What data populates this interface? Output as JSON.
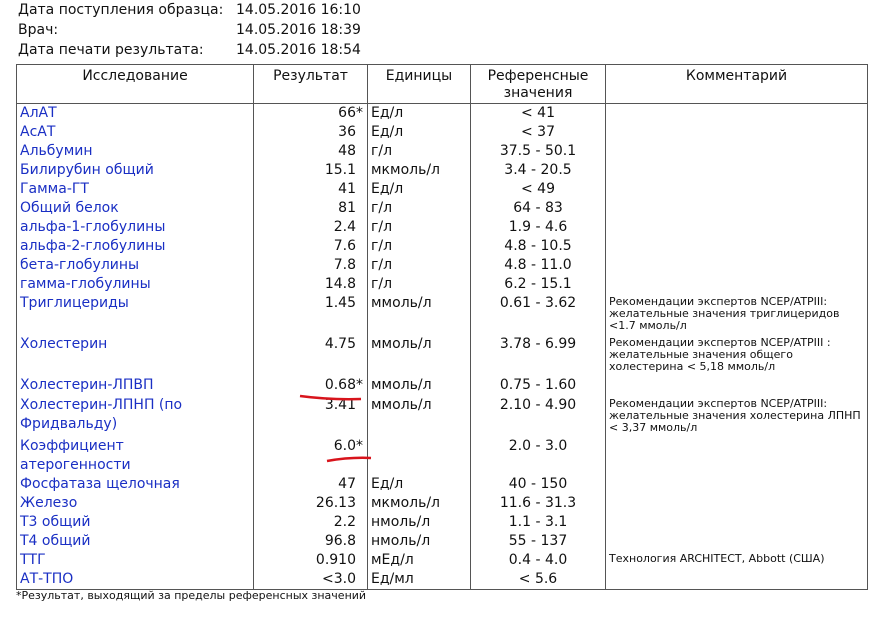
{
  "header": {
    "fields": [
      {
        "label": "Дата поступления образца:",
        "value": "14.05.2016 16:10"
      },
      {
        "label": "Врач:",
        "value": "14.05.2016 18:39"
      },
      {
        "label": "Дата печати результата:",
        "value": "14.05.2016 18:54"
      }
    ]
  },
  "table": {
    "columns": [
      "Исследование",
      "Результат",
      "Единицы",
      "Референсные значения",
      "Комментарий"
    ],
    "rows": [
      {
        "name": "АлАТ",
        "result": "66",
        "flag": "*",
        "units": "Ед/л",
        "reference": "< 41"
      },
      {
        "name": "АсАТ",
        "result": "36",
        "units": "Ед/л",
        "reference": "< 37"
      },
      {
        "name": "Альбумин",
        "result": "48",
        "units": "г/л",
        "reference": "37.5 - 50.1"
      },
      {
        "name": "Билирубин общий",
        "result": "15.1",
        "units": "мкмоль/л",
        "reference": "3.4 - 20.5"
      },
      {
        "name": "Гамма-ГТ",
        "result": "41",
        "units": "Ед/л",
        "reference": "< 49"
      },
      {
        "name": "Общий белок",
        "result": "81",
        "units": "г/л",
        "reference": "64 - 83"
      },
      {
        "name": "альфа-1-глобулины",
        "result": "2.4",
        "units": "г/л",
        "reference": "1.9 - 4.6"
      },
      {
        "name": "альфа-2-глобулины",
        "result": "7.6",
        "units": "г/л",
        "reference": "4.8 - 10.5"
      },
      {
        "name": "бета-глобулины",
        "result": "7.8",
        "units": "г/л",
        "reference": "4.8 - 11.0"
      },
      {
        "name": "гамма-глобулины",
        "result": "14.8",
        "units": "г/л",
        "reference": "6.2 - 15.1"
      },
      {
        "name": "Триглицериды",
        "result": "1.45",
        "units": "ммоль/л",
        "reference": "0.61 - 3.62",
        "comment": "Рекомендации экспертов NCEP/ATPIII:\nжелательные значения триглицеридов\n<1.7 ммоль/л"
      },
      {
        "name": "Холестерин",
        "result": "4.75",
        "units": "ммоль/л",
        "reference": "3.78 - 6.99",
        "comment": "Рекомендации экспертов NCEP/ATPIII :\nжелательные значения общего\nхолестерина < 5,18 ммоль/л"
      },
      {
        "name": "Холестерин-ЛПВП",
        "result": "0.68",
        "flag": "*",
        "units": "ммоль/л",
        "reference": "0.75 - 1.60"
      },
      {
        "name": "Холестерин-ЛПНП (по\nФридвальду)",
        "result": "3.41",
        "units": "ммоль/л",
        "reference": "2.10 - 4.90",
        "comment": "Рекомендации экспертов NCEP/ATPIII:\nжелательные значения холестерина ЛПНП\n< 3,37 ммоль/л"
      },
      {
        "name": "Коэффициент\nатерогенности",
        "result": "6.0",
        "flag": "*",
        "reference": "2.0 - 3.0"
      },
      {
        "name": "Фосфатаза щелочная",
        "result": "47",
        "units": "Ед/л",
        "reference": "40 - 150"
      },
      {
        "name": "Железо",
        "result": "26.13",
        "units": "мкмоль/л",
        "reference": "11.6 - 31.3"
      },
      {
        "name": "Т3 общий",
        "result": "2.2",
        "units": "нмоль/л",
        "reference": "1.1 - 3.1"
      },
      {
        "name": "Т4 общий",
        "result": "96.8",
        "units": "нмоль/л",
        "reference": "55 - 137"
      },
      {
        "name": "ТТГ",
        "result": "0.910",
        "units": "мЕд/л",
        "reference": "0.4 - 4.0",
        "comment": "Технология ARCHITECT, Abbott (США)"
      },
      {
        "name": "АТ-ТПО",
        "result": "<3.0",
        "units": "Ед/мл",
        "reference": "< 5.6"
      }
    ]
  },
  "footnote": "*Результат, выходящий за пределы референсных значений"
}
